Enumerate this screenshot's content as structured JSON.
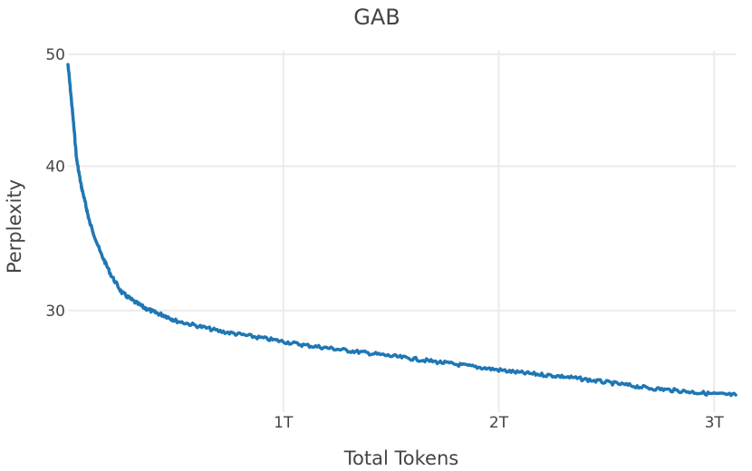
{
  "chart_data": {
    "type": "line",
    "title": "GAB",
    "xlabel": "Total Tokens",
    "ylabel": "Perplexity",
    "xlim": [
      0,
      3.1
    ],
    "ylim": [
      24.5,
      50
    ],
    "y_scale": "log",
    "grid": true,
    "legend": "none",
    "x_ticks": [
      {
        "value": 1,
        "label": "1T"
      },
      {
        "value": 2,
        "label": "2T"
      },
      {
        "value": 3,
        "label": "3T"
      }
    ],
    "y_ticks": [
      {
        "value": 30,
        "label": "30"
      },
      {
        "value": 40,
        "label": "40"
      },
      {
        "value": 50,
        "label": "50"
      }
    ],
    "series": [
      {
        "color": "#1f77b4",
        "x": [
          0.0,
          0.02,
          0.04,
          0.06,
          0.08,
          0.1,
          0.15,
          0.2,
          0.25,
          0.3,
          0.35,
          0.4,
          0.45,
          0.5,
          0.6,
          0.7,
          0.8,
          0.9,
          1.0,
          1.1,
          1.2,
          1.3,
          1.4,
          1.5,
          1.6,
          1.7,
          1.8,
          1.9,
          2.0,
          2.1,
          2.2,
          2.3,
          2.4,
          2.5,
          2.6,
          2.7,
          2.8,
          2.9,
          3.0,
          3.1
        ],
        "y": [
          49.0,
          44.8,
          40.6,
          38.6,
          37.2,
          35.8,
          33.7,
          32.2,
          31.1,
          30.6,
          30.2,
          29.9,
          29.7,
          29.4,
          29.1,
          28.8,
          28.6,
          28.4,
          28.2,
          28.0,
          27.85,
          27.7,
          27.55,
          27.4,
          27.25,
          27.1,
          26.95,
          26.8,
          26.65,
          26.5,
          26.4,
          26.3,
          26.15,
          26.0,
          25.85,
          25.7,
          25.6,
          25.5,
          25.4,
          25.35
        ]
      }
    ]
  }
}
